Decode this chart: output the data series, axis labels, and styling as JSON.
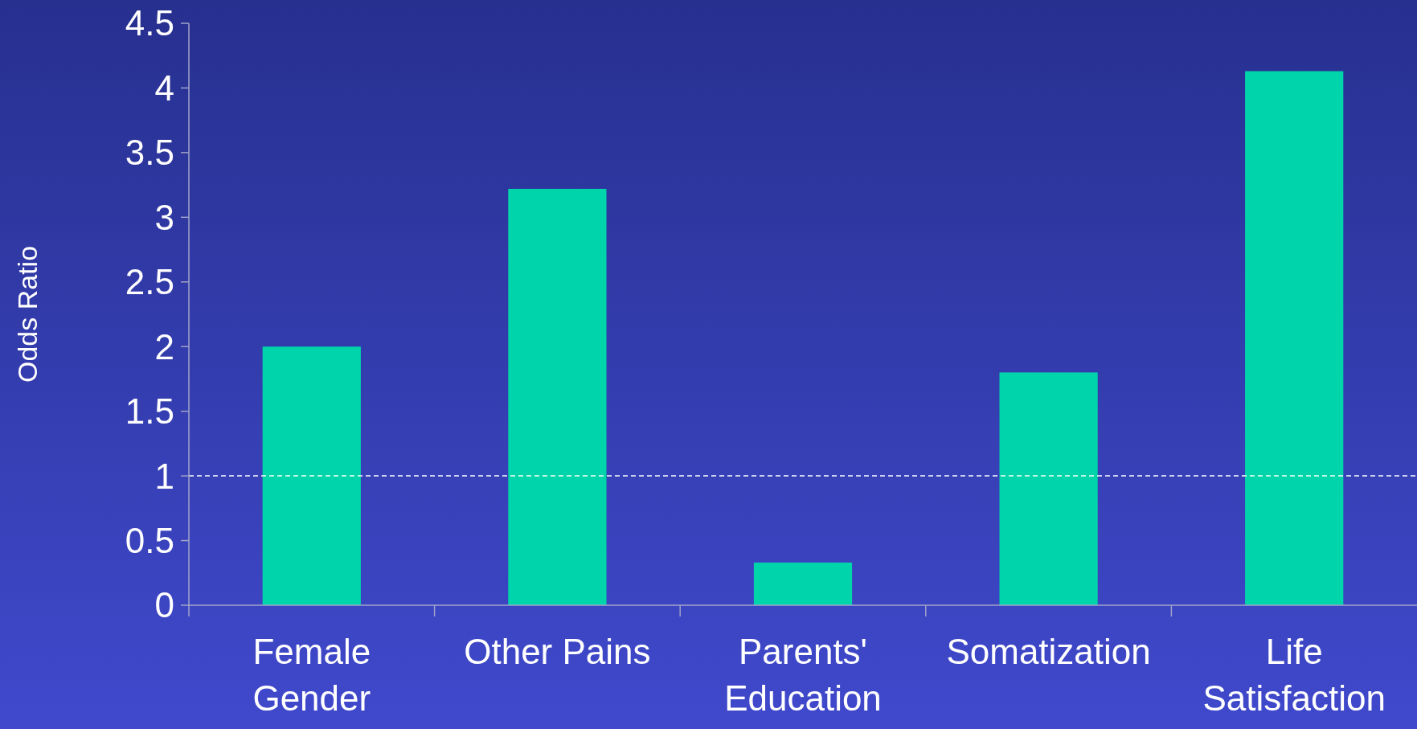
{
  "chart_data": {
    "type": "bar",
    "ylabel": "Odds Ratio",
    "categories": [
      "Female Gender",
      "Other Pains",
      "Parents' Education",
      "Somatization",
      "Life Satisfaction"
    ],
    "values": [
      2.0,
      3.22,
      0.33,
      1.8,
      4.13
    ],
    "color": "#00d4aa",
    "ylim": [
      0,
      4.5
    ],
    "yticks": [
      0,
      0.5,
      1,
      1.5,
      2,
      2.5,
      3,
      3.5,
      4,
      4.5
    ],
    "grid": false,
    "ref_lines": [
      {
        "axis": "y",
        "value": 1,
        "color": "#ffffff",
        "line_style": "dashed"
      }
    ]
  }
}
